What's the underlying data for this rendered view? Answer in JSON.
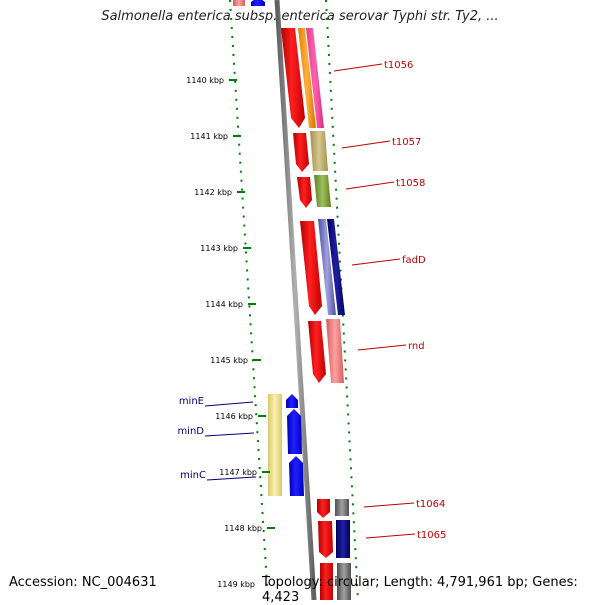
{
  "header": {
    "title": "Salmonella enterica subsp. enterica serovar Typhi str. Ty2, ..."
  },
  "footer": {
    "accession": "Accession: NC_004631",
    "summary": "Topology: circular; Length: 4,791,961 bp; Genes: 4,423"
  },
  "ticks": [
    {
      "label": "1140 kbp"
    },
    {
      "label": "1141 kbp"
    },
    {
      "label": "1142 kbp"
    },
    {
      "label": "1143 kbp"
    },
    {
      "label": "1144 kbp"
    },
    {
      "label": "1145 kbp"
    },
    {
      "label": "1146 kbp"
    },
    {
      "label": "1147 kbp"
    },
    {
      "label": "1148 kbp"
    },
    {
      "label": "1149 kbp"
    }
  ],
  "gene_labels_right": [
    {
      "label": "t1056",
      "color": "#c00000"
    },
    {
      "label": "t1057",
      "color": "#c00000"
    },
    {
      "label": "t1058",
      "color": "#c00000"
    },
    {
      "label": "fadD",
      "color": "#c00000"
    },
    {
      "label": "rnd",
      "color": "#c00000"
    },
    {
      "label": "t1064",
      "color": "#c00000"
    },
    {
      "label": "t1065",
      "color": "#c00000"
    }
  ],
  "gene_labels_left": [
    {
      "label": "minE",
      "color": "#000080"
    },
    {
      "label": "minD",
      "color": "#000080"
    },
    {
      "label": "minC",
      "color": "#000080"
    }
  ],
  "colors": {
    "backbone": "#808080",
    "forward_gene": "#ff0000",
    "reverse_gene": "#0000ff",
    "tick": "#008000"
  }
}
